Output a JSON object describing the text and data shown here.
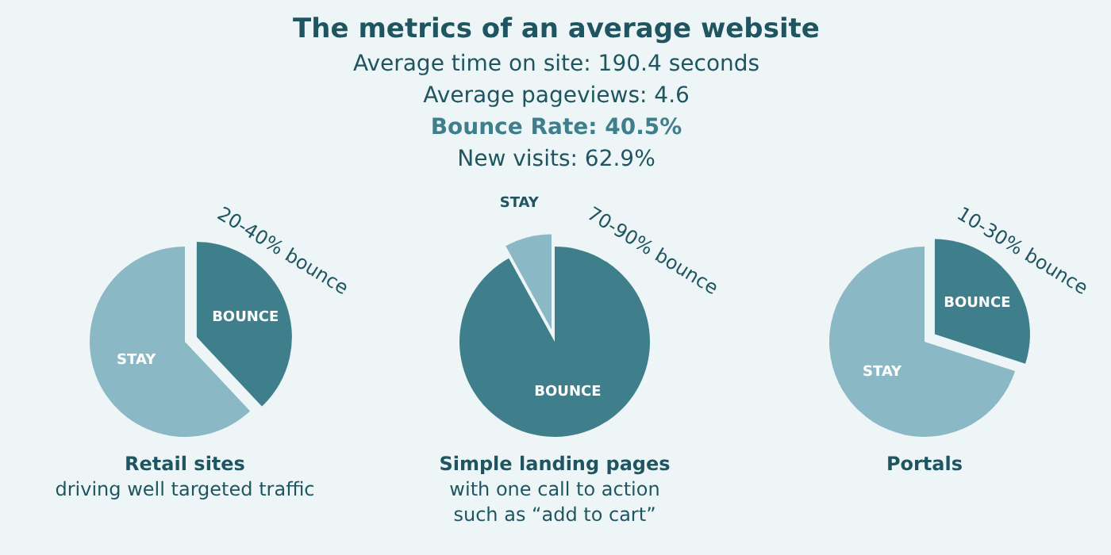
{
  "chart_data": [
    {
      "type": "other",
      "title": "The metrics of an average website",
      "annotations": [
        "Average time on site: 190.4 seconds",
        "Average pageviews: 4.6",
        "Bounce Rate: 40.5%",
        "New visits: 62.9%"
      ]
    },
    {
      "type": "pie",
      "title": "Retail sites",
      "subtitle": "driving well targeted traffic",
      "categories": [
        "BOUNCE",
        "STAY"
      ],
      "values": [
        38,
        62
      ],
      "colors": [
        "#3f7f8c",
        "#8ab8c4"
      ],
      "annotations": [
        "20-40% bounce"
      ]
    },
    {
      "type": "pie",
      "title": "Simple landing pages",
      "subtitle": "with one call to action\nsuch as “add to cart”",
      "categories": [
        "BOUNCE",
        "STAY"
      ],
      "values": [
        92,
        8
      ],
      "colors": [
        "#3f7f8c",
        "#8ab8c4"
      ],
      "annotations": [
        "70-90% bounce"
      ]
    },
    {
      "type": "pie",
      "title": "Portals",
      "categories": [
        "BOUNCE",
        "STAY"
      ],
      "values": [
        30,
        70
      ],
      "colors": [
        "#3f7f8c",
        "#8ab8c4"
      ],
      "annotations": [
        "10-30% bounce"
      ]
    }
  ]
}
